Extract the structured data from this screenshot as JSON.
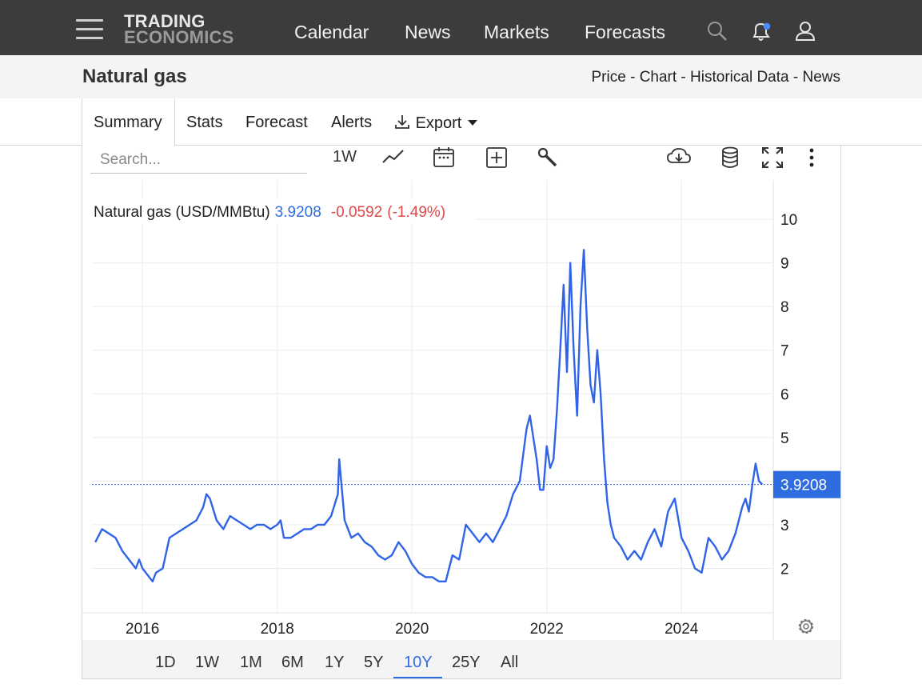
{
  "nav": {
    "logo_line1": "TRADING",
    "logo_line2": "ECONOMICS",
    "links": [
      "Calendar",
      "News",
      "Markets",
      "Forecasts"
    ],
    "icons": [
      "menu-icon",
      "search-icon",
      "bell-icon",
      "user-icon"
    ],
    "notification_dot_color": "#4a8cff"
  },
  "header": {
    "title": "Natural gas",
    "links": [
      "Price",
      "Chart",
      "Historical Data",
      "News"
    ],
    "separator": " - "
  },
  "tabs": {
    "items": [
      "Summary",
      "Stats",
      "Forecast",
      "Alerts",
      "Export"
    ],
    "active": "Summary"
  },
  "toolbar": {
    "search_placeholder": "Search...",
    "period": "1W",
    "icons": [
      "line-chart-icon",
      "calendar-icon",
      "add-compare-icon",
      "wrench-icon",
      "download-cloud-icon",
      "database-icon",
      "fullscreen-icon",
      "more-vertical-icon"
    ]
  },
  "chart_data": {
    "type": "line",
    "legend_name": "Natural gas (USD/MMBtu)",
    "last_value": "3.9208",
    "change": "-0.0592",
    "change_pct": "(-1.49%)",
    "xlabel": "",
    "ylabel": "",
    "x_ticks": [
      "2016",
      "2018",
      "2020",
      "2022",
      "2024"
    ],
    "y_ticks": [
      2,
      3,
      4,
      5,
      6,
      7,
      8,
      9,
      10
    ],
    "y_tick_labels": [
      "2",
      "3",
      "",
      "5",
      "6",
      "7",
      "8",
      "9",
      "10"
    ],
    "xlim": [
      2015.25,
      2025.35
    ],
    "ylim": [
      1.0,
      10.9
    ],
    "grid": true,
    "line_color": "#2f63e8",
    "up_color": "#2f6ce0",
    "down_color": "#e04747",
    "x": [
      2015.3,
      2015.4,
      2015.5,
      2015.6,
      2015.7,
      2015.8,
      2015.9,
      2015.95,
      2016.0,
      2016.1,
      2016.15,
      2016.2,
      2016.3,
      2016.4,
      2016.5,
      2016.6,
      2016.7,
      2016.8,
      2016.9,
      2016.95,
      2017.0,
      2017.1,
      2017.2,
      2017.3,
      2017.4,
      2017.5,
      2017.6,
      2017.7,
      2017.8,
      2017.9,
      2018.0,
      2018.05,
      2018.1,
      2018.2,
      2018.3,
      2018.4,
      2018.5,
      2018.6,
      2018.7,
      2018.8,
      2018.9,
      2018.92,
      2019.0,
      2019.1,
      2019.2,
      2019.3,
      2019.4,
      2019.5,
      2019.6,
      2019.7,
      2019.8,
      2019.9,
      2020.0,
      2020.1,
      2020.2,
      2020.3,
      2020.4,
      2020.5,
      2020.6,
      2020.7,
      2020.8,
      2020.9,
      2021.0,
      2021.1,
      2021.2,
      2021.3,
      2021.4,
      2021.5,
      2021.6,
      2021.7,
      2021.75,
      2021.8,
      2021.85,
      2021.9,
      2021.95,
      2022.0,
      2022.05,
      2022.1,
      2022.15,
      2022.2,
      2022.25,
      2022.3,
      2022.35,
      2022.4,
      2022.45,
      2022.5,
      2022.55,
      2022.6,
      2022.65,
      2022.7,
      2022.75,
      2022.8,
      2022.85,
      2022.9,
      2022.95,
      2023.0,
      2023.05,
      2023.1,
      2023.2,
      2023.3,
      2023.4,
      2023.5,
      2023.6,
      2023.7,
      2023.8,
      2023.9,
      2024.0,
      2024.1,
      2024.2,
      2024.3,
      2024.4,
      2024.5,
      2024.6,
      2024.7,
      2024.8,
      2024.85,
      2024.9,
      2024.95,
      2025.0,
      2025.05,
      2025.1,
      2025.15,
      2025.2
    ],
    "values": [
      2.6,
      2.9,
      2.8,
      2.7,
      2.4,
      2.2,
      2.0,
      2.2,
      2.0,
      1.8,
      1.7,
      1.9,
      2.0,
      2.7,
      2.8,
      2.9,
      3.0,
      3.1,
      3.4,
      3.7,
      3.6,
      3.1,
      2.9,
      3.2,
      3.1,
      3.0,
      2.9,
      3.0,
      3.0,
      2.9,
      3.0,
      3.1,
      2.7,
      2.7,
      2.8,
      2.9,
      2.9,
      3.0,
      3.0,
      3.2,
      3.7,
      4.5,
      3.1,
      2.7,
      2.8,
      2.6,
      2.5,
      2.3,
      2.2,
      2.3,
      2.6,
      2.4,
      2.1,
      1.9,
      1.8,
      1.8,
      1.7,
      1.7,
      2.3,
      2.2,
      3.0,
      2.8,
      2.6,
      2.8,
      2.6,
      2.9,
      3.2,
      3.7,
      4.0,
      5.2,
      5.5,
      5.0,
      4.5,
      3.8,
      3.8,
      4.8,
      4.3,
      4.5,
      5.6,
      7.0,
      8.5,
      6.5,
      9.0,
      7.0,
      5.5,
      8.0,
      9.3,
      7.5,
      6.2,
      5.8,
      7.0,
      6.0,
      4.5,
      3.5,
      3.0,
      2.7,
      2.6,
      2.5,
      2.2,
      2.4,
      2.2,
      2.6,
      2.9,
      2.5,
      3.3,
      3.6,
      2.7,
      2.4,
      2.0,
      1.9,
      2.7,
      2.5,
      2.2,
      2.4,
      2.8,
      3.1,
      3.4,
      3.6,
      3.3,
      3.9,
      4.4,
      4.0,
      3.92
    ]
  },
  "ranges": {
    "items": [
      "1D",
      "1W",
      "1M",
      "6M",
      "1Y",
      "5Y",
      "10Y",
      "25Y",
      "All"
    ],
    "active": "10Y"
  }
}
